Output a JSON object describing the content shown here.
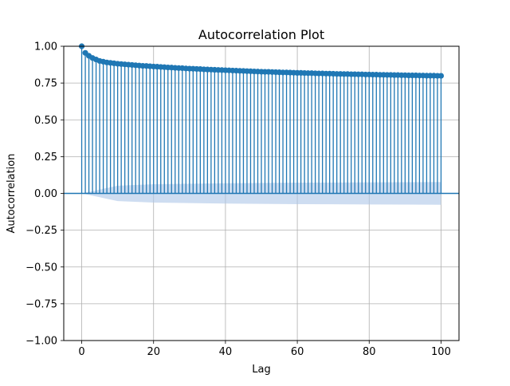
{
  "chart_data": {
    "type": "stem",
    "title": "Autocorrelation Plot",
    "xlabel": "Lag",
    "ylabel": "Autocorrelation",
    "xlim": [
      -5,
      105
    ],
    "ylim": [
      -1.0,
      1.0
    ],
    "xticks": [
      0,
      20,
      40,
      60,
      80,
      100
    ],
    "xtick_labels": [
      "0",
      "20",
      "40",
      "60",
      "80",
      "100"
    ],
    "yticks": [
      -1.0,
      -0.75,
      -0.5,
      -0.25,
      0.0,
      0.25,
      0.5,
      0.75,
      1.0
    ],
    "ytick_labels": [
      "−1.00",
      "−0.75",
      "−0.50",
      "−0.25",
      "0.00",
      "0.25",
      "0.50",
      "0.75",
      "1.00"
    ],
    "grid": true,
    "colors": {
      "stem": "#1f77b4",
      "band": "#aec7e8",
      "grid": "#b0b0b0"
    },
    "series": [
      {
        "x": [
          0,
          1,
          2,
          3,
          4,
          5,
          6,
          7,
          8,
          9,
          10,
          11,
          12,
          13,
          14,
          15,
          16,
          17,
          18,
          19,
          20,
          21,
          22,
          23,
          24,
          25,
          26,
          27,
          28,
          29,
          30,
          31,
          32,
          33,
          34,
          35,
          36,
          37,
          38,
          39,
          40,
          41,
          42,
          43,
          44,
          45,
          46,
          47,
          48,
          49,
          50,
          51,
          52,
          53,
          54,
          55,
          56,
          57,
          58,
          59,
          60,
          61,
          62,
          63,
          64,
          65,
          66,
          67,
          68,
          69,
          70,
          71,
          72,
          73,
          74,
          75,
          76,
          77,
          78,
          79,
          80,
          81,
          82,
          83,
          84,
          85,
          86,
          87,
          88,
          89,
          90,
          91,
          92,
          93,
          94,
          95,
          96,
          97,
          98,
          99,
          100
        ],
        "values": [
          1.0,
          0.955,
          0.935,
          0.92,
          0.91,
          0.9,
          0.895,
          0.89,
          0.887,
          0.884,
          0.881,
          0.879,
          0.877,
          0.875,
          0.873,
          0.871,
          0.869,
          0.867,
          0.866,
          0.864,
          0.862,
          0.861,
          0.859,
          0.858,
          0.856,
          0.855,
          0.853,
          0.852,
          0.851,
          0.849,
          0.848,
          0.847,
          0.846,
          0.845,
          0.843,
          0.842,
          0.841,
          0.84,
          0.839,
          0.838,
          0.837,
          0.836,
          0.835,
          0.834,
          0.833,
          0.832,
          0.831,
          0.83,
          0.829,
          0.828,
          0.827,
          0.826,
          0.826,
          0.825,
          0.824,
          0.823,
          0.822,
          0.822,
          0.821,
          0.82,
          0.819,
          0.819,
          0.818,
          0.817,
          0.817,
          0.816,
          0.815,
          0.815,
          0.814,
          0.814,
          0.813,
          0.812,
          0.812,
          0.811,
          0.811,
          0.81,
          0.81,
          0.809,
          0.809,
          0.808,
          0.808,
          0.807,
          0.807,
          0.806,
          0.806,
          0.805,
          0.805,
          0.804,
          0.804,
          0.803,
          0.803,
          0.802,
          0.802,
          0.802,
          0.801,
          0.801,
          0.8,
          0.8,
          0.8,
          0.799,
          0.799
        ]
      }
    ],
    "confidence_band": {
      "x": [
        0,
        10,
        20,
        30,
        40,
        50,
        60,
        70,
        80,
        90,
        100
      ],
      "upper": [
        0.0,
        0.052,
        0.062,
        0.066,
        0.069,
        0.071,
        0.073,
        0.074,
        0.075,
        0.076,
        0.077
      ],
      "lower": [
        0.0,
        -0.052,
        -0.062,
        -0.066,
        -0.069,
        -0.071,
        -0.073,
        -0.074,
        -0.075,
        -0.076,
        -0.077
      ]
    }
  }
}
